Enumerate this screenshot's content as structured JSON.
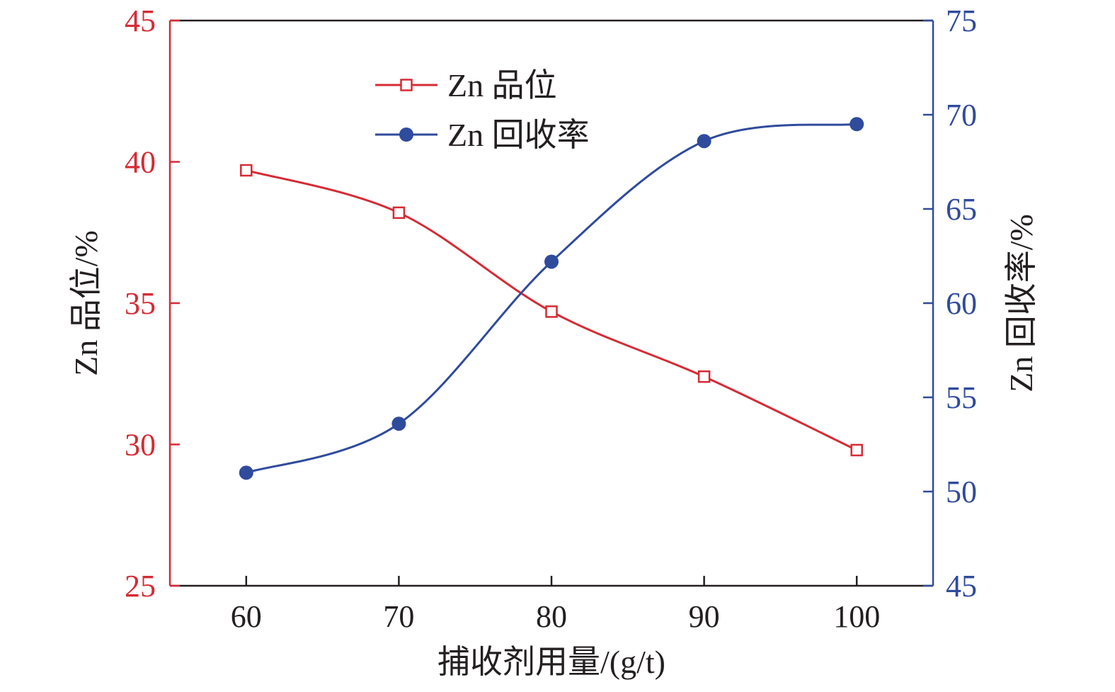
{
  "chart_data": {
    "type": "line",
    "xlabel": "捕收剂用量/(g/t)",
    "ylabel_left": "Zn 品位/%",
    "ylabel_right": "Zn 回收率/%",
    "x": [
      60,
      70,
      80,
      90,
      100
    ],
    "x_ticks": [
      "60",
      "70",
      "80",
      "90",
      "100"
    ],
    "xlim": [
      55,
      105
    ],
    "ylim_left": [
      25,
      45
    ],
    "ylim_right": [
      45,
      75
    ],
    "y_ticks_left": [
      "25",
      "30",
      "35",
      "40",
      "45"
    ],
    "y_ticks_right": [
      "45",
      "50",
      "55",
      "60",
      "65",
      "70",
      "75"
    ],
    "grid": false,
    "legend_position": "top-center",
    "series": [
      {
        "name": "Zn 品位",
        "axis": "left",
        "marker": "open-square",
        "color": "#d62b35",
        "values": [
          39.7,
          38.2,
          34.7,
          32.4,
          29.8
        ]
      },
      {
        "name": "Zn 回收率",
        "axis": "right",
        "marker": "filled-circle",
        "color": "#2f4b9c",
        "values": [
          51.0,
          53.6,
          62.2,
          68.6,
          69.5
        ]
      }
    ]
  }
}
